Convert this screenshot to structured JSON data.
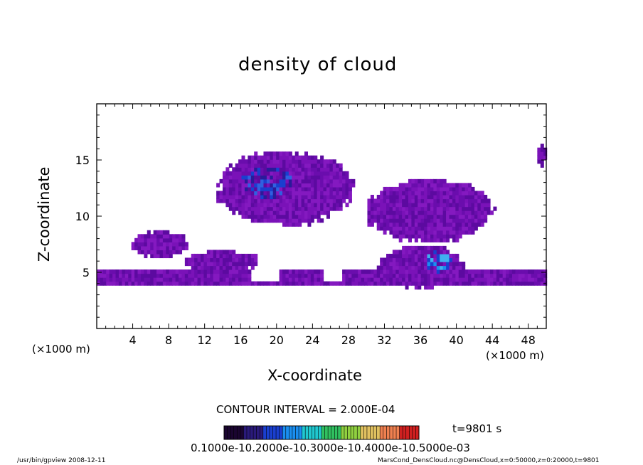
{
  "chart_data": {
    "type": "heatmap",
    "title": "density of cloud",
    "xlabel": "X-coordinate",
    "ylabel": "Z-coordinate",
    "x_unit": "(×1000 m)",
    "y_unit": "(×1000 m)",
    "xlim": [
      0,
      50
    ],
    "ylim": [
      0,
      20
    ],
    "x_ticks": [
      4,
      8,
      12,
      16,
      20,
      24,
      28,
      32,
      36,
      40,
      44,
      48
    ],
    "y_ticks": [
      5,
      10,
      15
    ],
    "contour_interval": "CONTOUR INTERVAL = 2.000E-04",
    "time_label": "t=9801 s",
    "colorbar_labels": "0.1000e-10.2000e-10.3000e-10.4000e-10.5000e-03",
    "colorbar_colors": [
      "#1a0530",
      "#2a1a7a",
      "#1a3fcf",
      "#1a8ef0",
      "#20c8d0",
      "#30c060",
      "#90d040",
      "#e0c060",
      "#f08050",
      "#d02020"
    ],
    "cloud_regions": [
      {
        "level": 1,
        "cx": 21,
        "cz": 12.5,
        "rx": 8,
        "rz": 3.5
      },
      {
        "level": 1,
        "cx": 37,
        "cz": 10.5,
        "rx": 7.5,
        "rz": 3
      },
      {
        "level": 1,
        "cx": 36,
        "cz": 5.5,
        "rx": 5,
        "rz": 2
      },
      {
        "level": 1,
        "cx": 7,
        "cz": 7.5,
        "rx": 3.5,
        "rz": 1.2
      },
      {
        "level": 1,
        "cx": 14,
        "cz": 6,
        "rx": 4.5,
        "rz": 1
      },
      {
        "level": 1,
        "cx": 49.5,
        "cz": 15.5,
        "rx": 0.5,
        "rz": 1
      },
      {
        "level": 3,
        "cx": 19,
        "cz": 13,
        "rx": 3,
        "rz": 1.5
      },
      {
        "level": 4,
        "cx": 38,
        "cz": 6,
        "rx": 1.5,
        "rz": 1
      }
    ],
    "base_layer": {
      "z_bottom": 3.7,
      "z_top": 4.9,
      "x_gaps": [
        [
          17,
          20
        ],
        [
          25,
          27
        ]
      ]
    }
  },
  "footer": {
    "left": "/usr/bin/gpview   2008-12-11",
    "right": "MarsCond_DensCloud.nc@DensCloud,x=0:50000,z=0:20000,t=9801"
  }
}
